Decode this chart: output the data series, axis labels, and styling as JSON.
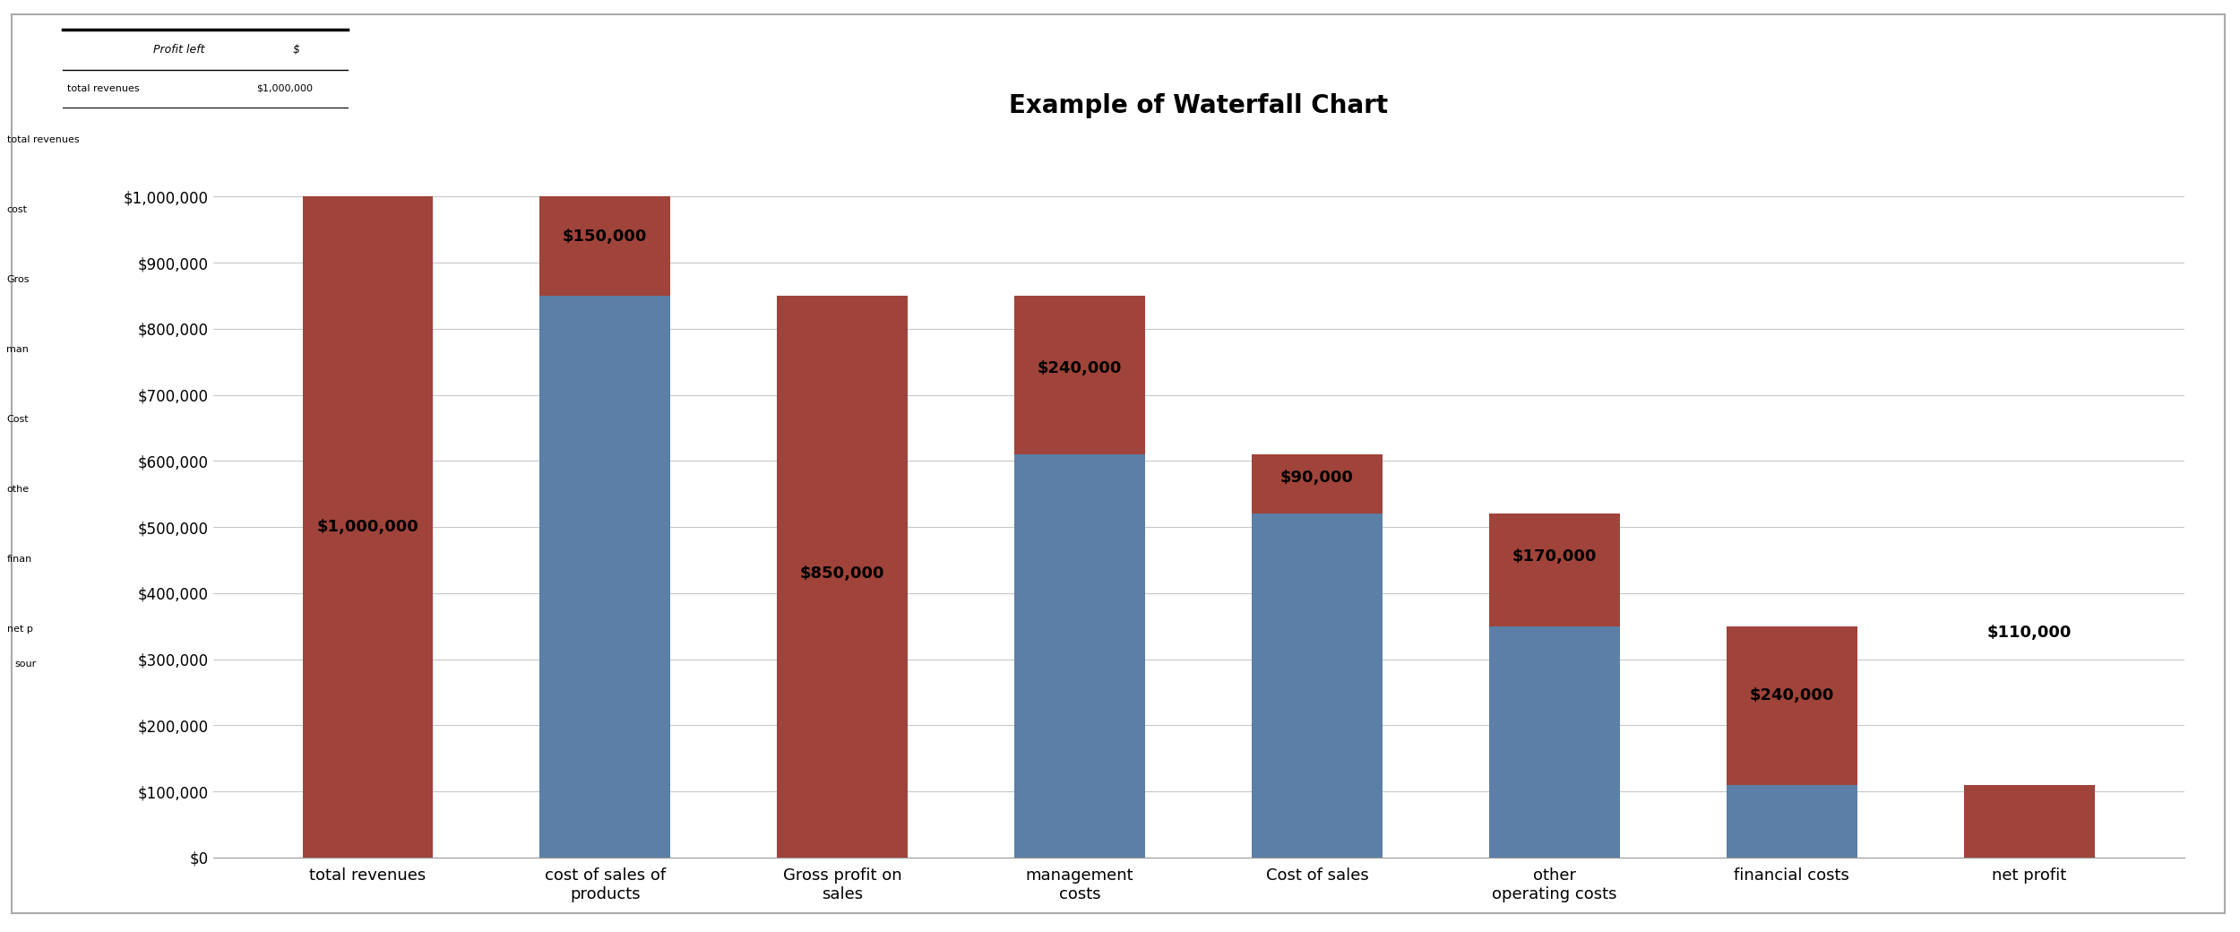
{
  "title": "Example of Waterfall Chart",
  "categories": [
    "total revenues",
    "cost of sales of\nproducts",
    "Gross profit on\nsales",
    "management\ncosts",
    "Cost of sales",
    "other\noperating costs",
    "financial costs",
    "net profit"
  ],
  "blue_height": [
    0,
    850000,
    0,
    610000,
    520000,
    350000,
    110000,
    0
  ],
  "red_bottom": [
    0,
    850000,
    0,
    610000,
    520000,
    350000,
    110000,
    0
  ],
  "red_height": [
    1000000,
    150000,
    850000,
    240000,
    90000,
    170000,
    240000,
    110000
  ],
  "blue_color": "#5B7FA6",
  "red_color": "#A0433A",
  "bg_color": "#FFFFFF",
  "chart_bg": "#FFFFFF",
  "ylim": [
    0,
    1100000
  ],
  "yticks": [
    0,
    100000,
    200000,
    300000,
    400000,
    500000,
    600000,
    700000,
    800000,
    900000,
    1000000
  ],
  "ytick_labels": [
    "$0",
    "$100,000",
    "$200,000",
    "$300,000",
    "$400,000",
    "$500,000",
    "$600,000",
    "$700,000",
    "$800,000",
    "$900,000",
    "$1,000,000"
  ],
  "grid_color": "#C8C8C8",
  "title_fontsize": 20,
  "label_fontsize": 13,
  "tick_fontsize": 12,
  "bar_label_data": [
    [
      0,
      500000,
      "$1,000,000"
    ],
    [
      1,
      940000,
      "$150,000"
    ],
    [
      2,
      430000,
      "$850,000"
    ],
    [
      3,
      740000,
      "$240,000"
    ],
    [
      4,
      575000,
      "$90,000"
    ],
    [
      5,
      455000,
      "$170,000"
    ],
    [
      6,
      245000,
      "$240,000"
    ],
    [
      7,
      340000,
      "$110,000"
    ]
  ],
  "table_header": [
    "Profit left",
    "$"
  ],
  "table_row": [
    "total revenues",
    "$1,000,000"
  ],
  "left_items": [
    "total revenues",
    "cost",
    "Gros",
    "man",
    "Cost",
    "othe",
    "finan",
    "net p"
  ],
  "source_label": "sour"
}
